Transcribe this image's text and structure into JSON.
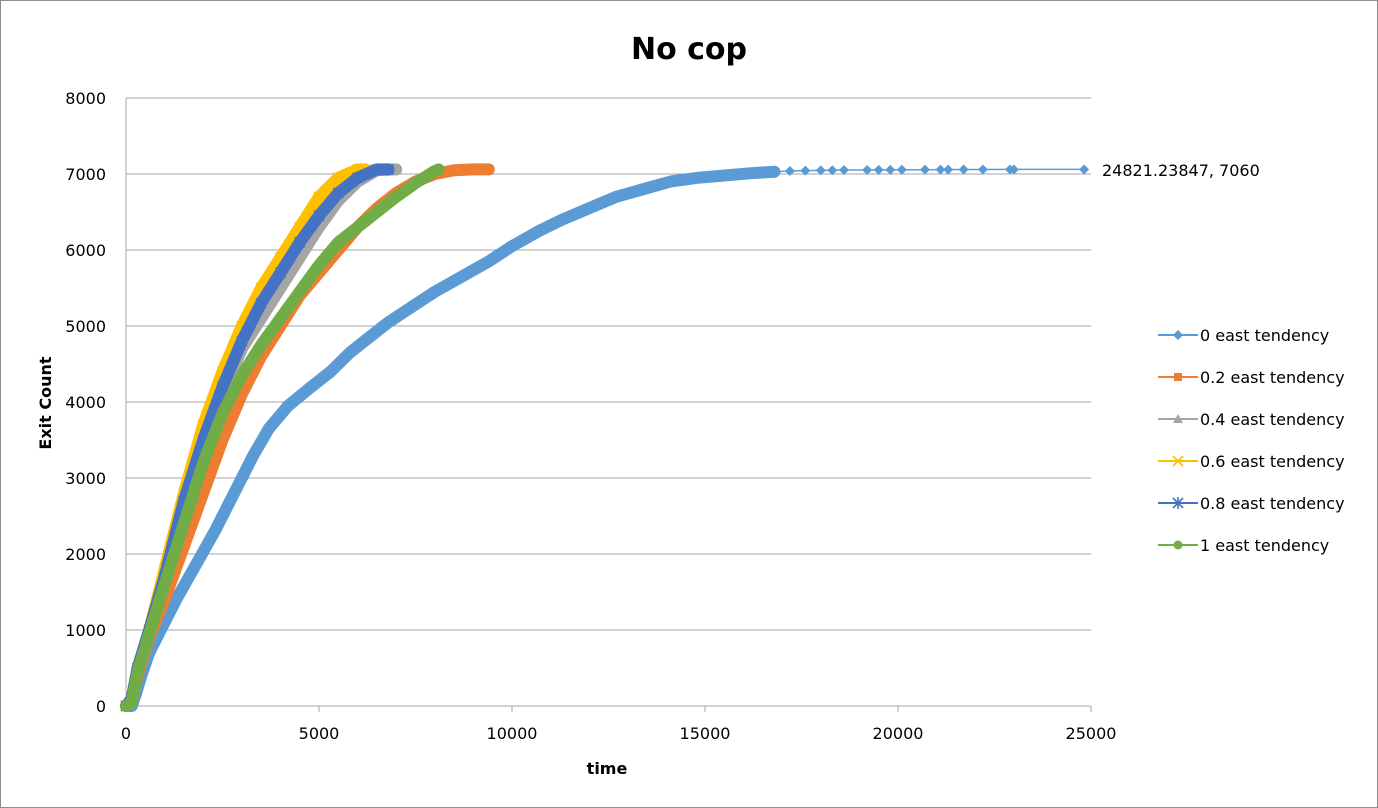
{
  "chart_data": {
    "type": "scatter",
    "title": "No cop",
    "xlabel": "time",
    "ylabel": "Exit Count",
    "xlim": [
      0,
      25000
    ],
    "ylim": [
      0,
      8000
    ],
    "xticks": [
      0,
      5000,
      10000,
      15000,
      20000,
      25000
    ],
    "yticks": [
      0,
      1000,
      2000,
      3000,
      4000,
      5000,
      6000,
      7000,
      8000
    ],
    "grid": "horizontal",
    "legend_position": "right",
    "annotation": {
      "text": "24821.23847, 7060",
      "x": 24821.23847,
      "y": 7060
    },
    "series": [
      {
        "name": "0 east tendency",
        "color": "#5b9bd5",
        "marker": "diamond",
        "points": [
          [
            0,
            0
          ],
          [
            150,
            0
          ],
          [
            250,
            150
          ],
          [
            400,
            400
          ],
          [
            600,
            700
          ],
          [
            900,
            1000
          ],
          [
            1300,
            1400
          ],
          [
            1800,
            1850
          ],
          [
            2300,
            2300
          ],
          [
            2800,
            2800
          ],
          [
            3300,
            3300
          ],
          [
            3700,
            3650
          ],
          [
            4200,
            3950
          ],
          [
            4800,
            4200
          ],
          [
            5300,
            4400
          ],
          [
            5800,
            4650
          ],
          [
            6300,
            4850
          ],
          [
            6800,
            5050
          ],
          [
            7400,
            5250
          ],
          [
            8000,
            5450
          ],
          [
            8700,
            5650
          ],
          [
            9400,
            5850
          ],
          [
            10000,
            6050
          ],
          [
            10700,
            6250
          ],
          [
            11300,
            6400
          ],
          [
            12000,
            6550
          ],
          [
            12700,
            6700
          ],
          [
            13400,
            6800
          ],
          [
            14100,
            6900
          ],
          [
            14800,
            6950
          ],
          [
            15500,
            6980
          ],
          [
            16200,
            7010
          ],
          [
            16800,
            7030
          ],
          [
            17200,
            7040
          ],
          [
            17600,
            7045
          ],
          [
            18000,
            7048
          ],
          [
            18300,
            7050
          ],
          [
            18600,
            7052
          ],
          [
            19200,
            7053
          ],
          [
            19500,
            7054
          ],
          [
            19800,
            7055
          ],
          [
            20100,
            7056
          ],
          [
            20700,
            7057
          ],
          [
            21100,
            7058
          ],
          [
            21300,
            7058
          ],
          [
            21700,
            7059
          ],
          [
            22200,
            7059
          ],
          [
            22900,
            7060
          ],
          [
            23000,
            7060
          ],
          [
            24821.23847,
            7060
          ]
        ]
      },
      {
        "name": "0.2 east tendency",
        "color": "#ed7d31",
        "marker": "square",
        "points": [
          [
            0,
            0
          ],
          [
            150,
            50
          ],
          [
            300,
            400
          ],
          [
            600,
            900
          ],
          [
            1000,
            1400
          ],
          [
            1500,
            2100
          ],
          [
            2000,
            2800
          ],
          [
            2500,
            3500
          ],
          [
            3000,
            4100
          ],
          [
            3500,
            4600
          ],
          [
            4000,
            5000
          ],
          [
            4500,
            5400
          ],
          [
            5000,
            5700
          ],
          [
            5500,
            6000
          ],
          [
            6000,
            6300
          ],
          [
            6500,
            6550
          ],
          [
            7000,
            6750
          ],
          [
            7500,
            6900
          ],
          [
            8000,
            7000
          ],
          [
            8500,
            7050
          ],
          [
            9000,
            7060
          ],
          [
            9400,
            7060
          ]
        ]
      },
      {
        "name": "0.4 east tendency",
        "color": "#a5a5a5",
        "marker": "triangle",
        "points": [
          [
            0,
            0
          ],
          [
            150,
            100
          ],
          [
            300,
            500
          ],
          [
            600,
            1000
          ],
          [
            1000,
            1700
          ],
          [
            1500,
            2600
          ],
          [
            2000,
            3400
          ],
          [
            2500,
            4100
          ],
          [
            3000,
            4700
          ],
          [
            3500,
            5100
          ],
          [
            4000,
            5500
          ],
          [
            4500,
            5900
          ],
          [
            5000,
            6300
          ],
          [
            5500,
            6650
          ],
          [
            6000,
            6900
          ],
          [
            6500,
            7050
          ],
          [
            7000,
            7060
          ]
        ]
      },
      {
        "name": "0.6 east tendency",
        "color": "#ffc000",
        "marker": "x",
        "points": [
          [
            0,
            0
          ],
          [
            150,
            100
          ],
          [
            300,
            500
          ],
          [
            600,
            1000
          ],
          [
            1000,
            1800
          ],
          [
            1500,
            2800
          ],
          [
            2000,
            3700
          ],
          [
            2500,
            4400
          ],
          [
            3000,
            5000
          ],
          [
            3500,
            5500
          ],
          [
            4000,
            5900
          ],
          [
            4500,
            6300
          ],
          [
            5000,
            6700
          ],
          [
            5500,
            6950
          ],
          [
            6000,
            7060
          ],
          [
            6200,
            7060
          ]
        ]
      },
      {
        "name": "0.8 east tendency",
        "color": "#4472c4",
        "marker": "star",
        "points": [
          [
            0,
            0
          ],
          [
            150,
            100
          ],
          [
            300,
            500
          ],
          [
            600,
            1000
          ],
          [
            1000,
            1700
          ],
          [
            1500,
            2700
          ],
          [
            2000,
            3500
          ],
          [
            2500,
            4200
          ],
          [
            3000,
            4800
          ],
          [
            3500,
            5300
          ],
          [
            4000,
            5700
          ],
          [
            4500,
            6100
          ],
          [
            5000,
            6450
          ],
          [
            5500,
            6750
          ],
          [
            6000,
            6950
          ],
          [
            6500,
            7060
          ],
          [
            6800,
            7060
          ]
        ]
      },
      {
        "name": "1 east tendency",
        "color": "#70ad47",
        "marker": "circle",
        "points": [
          [
            0,
            0
          ],
          [
            150,
            50
          ],
          [
            300,
            450
          ],
          [
            600,
            950
          ],
          [
            1000,
            1600
          ],
          [
            1500,
            2400
          ],
          [
            2000,
            3200
          ],
          [
            2500,
            3850
          ],
          [
            3000,
            4350
          ],
          [
            3500,
            4750
          ],
          [
            4000,
            5100
          ],
          [
            4500,
            5450
          ],
          [
            5000,
            5800
          ],
          [
            5500,
            6100
          ],
          [
            6000,
            6300
          ],
          [
            6500,
            6500
          ],
          [
            7000,
            6700
          ],
          [
            7500,
            6880
          ],
          [
            8000,
            7040
          ],
          [
            8100,
            7060
          ]
        ]
      }
    ]
  }
}
